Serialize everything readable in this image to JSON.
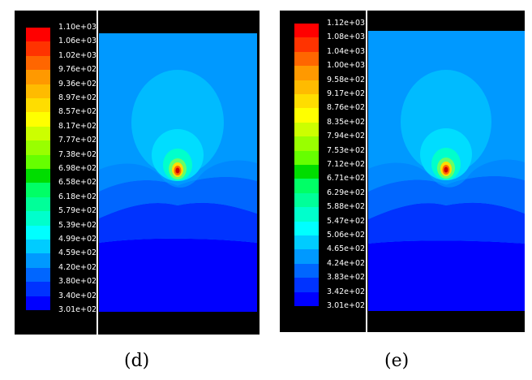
{
  "colormap": [
    "#ff0000",
    "#ff3300",
    "#ff6600",
    "#ff9900",
    "#ffbb00",
    "#ffdd00",
    "#ffff00",
    "#ccff00",
    "#99ff00",
    "#66ff00",
    "#00dd00",
    "#00ff66",
    "#00ff99",
    "#00ffcc",
    "#00ffff",
    "#00ccff",
    "#0099ff",
    "#0066ff",
    "#0033ff",
    "#0000ff"
  ],
  "panels": [
    {
      "caption": "(d)",
      "ticks": [
        "1.10e+03",
        "1.06e+03",
        "1.02e+03",
        "9.76e+02",
        "9.36e+02",
        "8.97e+02",
        "8.57e+02",
        "8.17e+02",
        "7.77e+02",
        "7.38e+02",
        "6.98e+02",
        "6.58e+02",
        "6.18e+02",
        "5.79e+02",
        "5.39e+02",
        "4.99e+02",
        "4.59e+02",
        "4.20e+02",
        "3.80e+02",
        "3.40e+02",
        "3.01e+02"
      ]
    },
    {
      "caption": "(e)",
      "ticks": [
        "1.12e+03",
        "1.08e+03",
        "1.04e+03",
        "1.00e+03",
        "9.58e+02",
        "9.17e+02",
        "8.76e+02",
        "8.35e+02",
        "7.94e+02",
        "7.53e+02",
        "7.12e+02",
        "6.71e+02",
        "6.29e+02",
        "5.88e+02",
        "5.47e+02",
        "5.06e+02",
        "4.65e+02",
        "4.24e+02",
        "3.83e+02",
        "3.42e+02",
        "3.01e+02"
      ]
    }
  ]
}
